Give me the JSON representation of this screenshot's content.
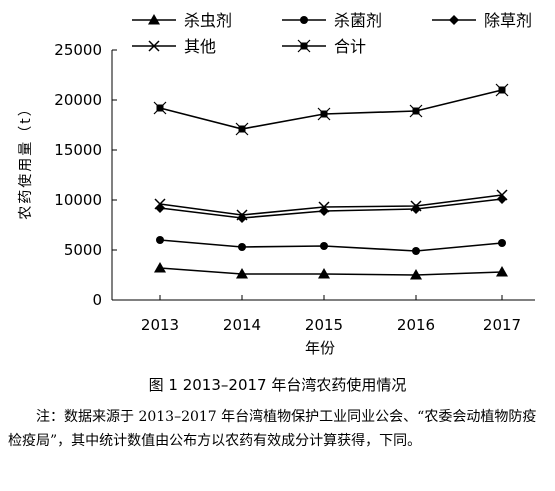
{
  "chart_data": {
    "type": "line",
    "x": [
      "2013",
      "2014",
      "2015",
      "2016",
      "2017"
    ],
    "xlabel": "年份",
    "ylabel": "农药使用量（t）",
    "ylim": [
      0,
      25000
    ],
    "yticks": [
      0,
      5000,
      10000,
      15000,
      20000,
      25000
    ],
    "grid": false,
    "legend_position": "top",
    "series": [
      {
        "name": "杀虫剂",
        "marker": "triangle",
        "values": [
          3200,
          2600,
          2600,
          2500,
          2800
        ]
      },
      {
        "name": "杀菌剂",
        "marker": "circle",
        "values": [
          6000,
          5300,
          5400,
          4900,
          5700
        ]
      },
      {
        "name": "除草剂",
        "marker": "diamond",
        "values": [
          9200,
          8200,
          8900,
          9100,
          10100
        ]
      },
      {
        "name": "其他",
        "marker": "x",
        "values": [
          9600,
          8500,
          9300,
          9400,
          10500
        ]
      },
      {
        "name": "合计",
        "marker": "square-star",
        "values": [
          19200,
          17100,
          18600,
          18900,
          21000
        ]
      }
    ]
  },
  "figure": {
    "caption": "图 1  2013–2017 年台湾农药使用情况",
    "note_label": "注：",
    "note_text": "数据来源于 2013–2017 年台湾植物保护工业同业公会、“农委会动植物防疫检疫局”，其中统计数值由公布方以农药有效成分计算获得，下同。"
  }
}
